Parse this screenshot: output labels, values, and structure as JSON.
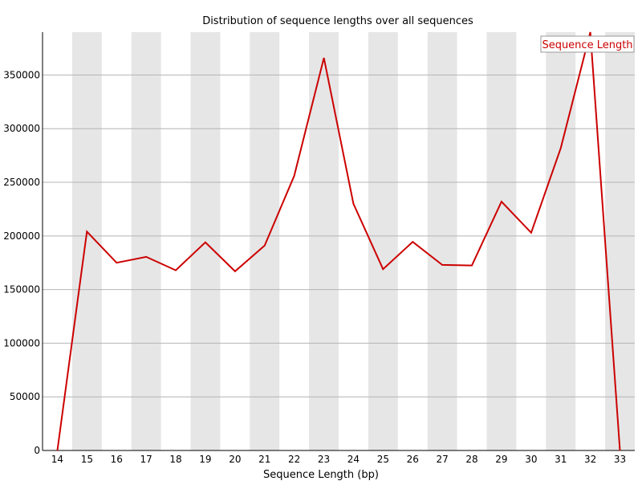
{
  "chart_data": {
    "type": "line",
    "title": "Distribution of sequence lengths over all sequences",
    "xlabel": "Sequence Length (bp)",
    "ylabel": "",
    "categories": [
      "14",
      "15",
      "16",
      "17",
      "18",
      "19",
      "20",
      "21",
      "22",
      "23",
      "24",
      "25",
      "26",
      "27",
      "28",
      "29",
      "30",
      "31",
      "32",
      "33"
    ],
    "series": [
      {
        "name": "Sequence Length",
        "color": "#cc0000",
        "values": [
          0,
          204000,
          175000,
          180500,
          168000,
          194000,
          167000,
          191000,
          256000,
          366000,
          230000,
          169000,
          194500,
          173000,
          172500,
          232000,
          203000,
          282000,
          390000,
          0
        ]
      }
    ],
    "ylim": [
      0,
      390000
    ],
    "yticks": [
      0,
      50000,
      100000,
      150000,
      200000,
      250000,
      300000,
      350000
    ],
    "ytick_labels": [
      "0",
      "50000",
      "100000",
      "150000",
      "200000",
      "250000",
      "300000",
      "350000"
    ],
    "grid": true,
    "alternating_bands": true,
    "legend_position": "top-right"
  },
  "colors": {
    "band": "#e6e6e6",
    "gridline": "#b4b4b4",
    "axis": "#000000",
    "series": "#cc0000"
  }
}
